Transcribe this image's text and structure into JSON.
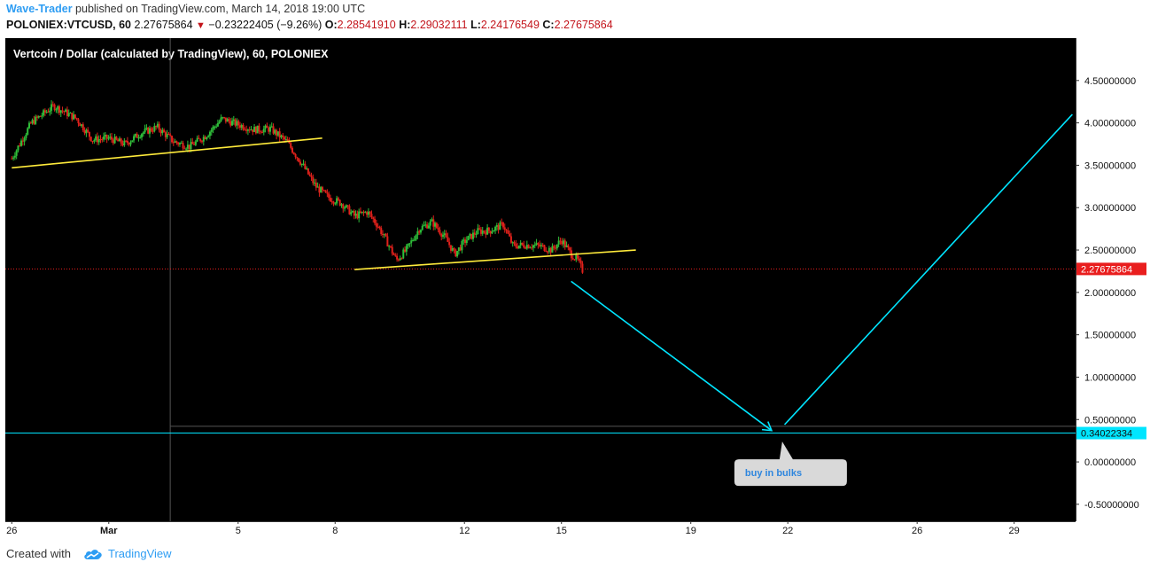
{
  "header": {
    "author": "Wave-Trader",
    "published_text": " published on TradingView.com, March 14, 2018 19:00 UTC",
    "symbol": "POLONIEX:VTCUSD, 60",
    "last": "2.27675864",
    "change": "−0.23222405 (−9.26%)",
    "o_label": "O:",
    "o_value": "2.28541910",
    "h_label": "H:",
    "h_value": "2.29032111",
    "l_label": "L:",
    "l_value": "2.24176549",
    "c_label": "C:",
    "c_value": "2.27675864"
  },
  "footer": {
    "created_with": "Created with",
    "brand": "TradingView",
    "logo_icon": "tradingview-cloud-icon"
  },
  "colors": {
    "background": "#000000",
    "up_candle": "#2fbf3a",
    "down_candle": "#e0211b",
    "trendline": "#ffeb3b",
    "projection": "#00e5ff",
    "price_label": "#e91e1e",
    "axis_text": "#ffffff",
    "brand": "#2e9df3"
  },
  "chart_data": {
    "type": "candlestick",
    "title": "Vertcoin / Dollar (calculated by TradingView), 60, POLONIEX",
    "x_tick_labels": [
      "26",
      "Mar",
      "5",
      "8",
      "12",
      "15",
      "19",
      "22",
      "26",
      "29"
    ],
    "x_tick_days": [
      -3,
      0,
      4,
      7,
      11,
      14,
      18,
      21,
      25,
      28
    ],
    "x_range_days": [
      -3.2,
      29.9
    ],
    "y_tick_labels": [
      "4.50000000",
      "4.00000000",
      "3.50000000",
      "3.00000000",
      "2.50000000",
      "2.00000000",
      "1.50000000",
      "1.00000000",
      "0.50000000",
      "0.00000000",
      "-0.50000000"
    ],
    "y_ticks": [
      4.5,
      4.0,
      3.5,
      3.0,
      2.5,
      2.0,
      1.5,
      1.0,
      0.5,
      0.0,
      -0.5
    ],
    "ylim": [
      -0.7,
      5.0
    ],
    "price_path": [
      [
        -3.0,
        3.58
      ],
      [
        -2.4,
        4.0
      ],
      [
        -1.7,
        4.2
      ],
      [
        -1.0,
        4.05
      ],
      [
        -0.5,
        3.8
      ],
      [
        0.0,
        3.82
      ],
      [
        0.5,
        3.75
      ],
      [
        1.0,
        3.88
      ],
      [
        1.5,
        3.95
      ],
      [
        2.0,
        3.78
      ],
      [
        2.5,
        3.72
      ],
      [
        3.0,
        3.85
      ],
      [
        3.5,
        4.05
      ],
      [
        4.0,
        3.98
      ],
      [
        4.5,
        3.92
      ],
      [
        5.0,
        3.93
      ],
      [
        5.5,
        3.78
      ],
      [
        6.0,
        3.5
      ],
      [
        6.4,
        3.25
      ],
      [
        6.8,
        3.12
      ],
      [
        7.2,
        3.05
      ],
      [
        7.6,
        2.9
      ],
      [
        8.0,
        2.95
      ],
      [
        8.3,
        2.8
      ],
      [
        8.6,
        2.6
      ],
      [
        8.9,
        2.38
      ],
      [
        9.2,
        2.5
      ],
      [
        9.6,
        2.75
      ],
      [
        10.0,
        2.83
      ],
      [
        10.4,
        2.65
      ],
      [
        10.7,
        2.45
      ],
      [
        11.0,
        2.6
      ],
      [
        11.4,
        2.72
      ],
      [
        11.8,
        2.73
      ],
      [
        12.2,
        2.8
      ],
      [
        12.5,
        2.55
      ],
      [
        12.9,
        2.56
      ],
      [
        13.3,
        2.55
      ],
      [
        13.7,
        2.5
      ],
      [
        14.0,
        2.62
      ],
      [
        14.3,
        2.45
      ],
      [
        14.5,
        2.38
      ],
      [
        14.65,
        2.26
      ]
    ],
    "last_price": 2.27675864,
    "last_price_label": "2.27675864",
    "target_price": 0.34022334,
    "target_price_label": "0.34022334",
    "trendlines": [
      {
        "from": [
          -3.0,
          3.47
        ],
        "to": [
          6.6,
          3.82
        ]
      },
      {
        "from": [
          7.6,
          2.27
        ],
        "to": [
          16.3,
          2.5
        ]
      }
    ],
    "projection_lines": [
      {
        "from": [
          14.3,
          2.13
        ],
        "to": [
          20.5,
          0.37
        ]
      },
      {
        "from": [
          20.9,
          0.44
        ],
        "to": [
          29.8,
          4.1
        ]
      }
    ],
    "annotation": {
      "text": "buy in bulks",
      "day": 20.8,
      "price": 0.0
    },
    "crosshair": {
      "day": 1.9,
      "price": 0.42
    },
    "grid": false,
    "legend": "none"
  }
}
